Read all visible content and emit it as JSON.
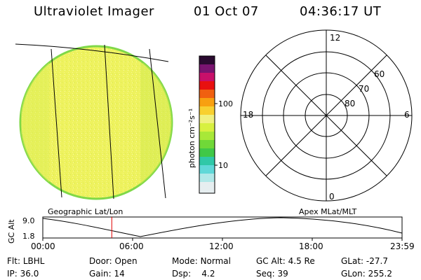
{
  "header": {
    "title": "Ultraviolet Imager",
    "date": "01 Oct 07",
    "time": "04:36:17 UT"
  },
  "colorbar": {
    "unit_label": "photon cm⁻²s⁻¹",
    "ticks": [
      "100",
      "10"
    ]
  },
  "polar": {
    "mlt_labels": {
      "top": "12",
      "left": "18",
      "right": "6",
      "bottom": "0"
    },
    "lat_labels": [
      "60",
      "70",
      "80"
    ]
  },
  "labels": {
    "geo": "Geographic Lat/Lon",
    "apex": "Apex MLat/MLT"
  },
  "altitude_strip": {
    "axis_label": "GC Alt",
    "ymax": "9.0",
    "ymin": "1.8",
    "time_ticks": [
      "00:00",
      "06:00",
      "12:00",
      "18:00",
      "23:59"
    ],
    "current_time_fraction": 0.192
  },
  "info": [
    [
      {
        "label": "Flt:",
        "value": "LBHL"
      },
      {
        "label": "Door:",
        "value": "Open"
      },
      {
        "label": "Mode:",
        "value": "Normal"
      },
      {
        "label": "GC Alt:",
        "value": "4.5 Re"
      },
      {
        "label": "GLat:",
        "value": "-27.7"
      }
    ],
    [
      {
        "label": "IP:",
        "value": "36.0"
      },
      {
        "label": "Gain:",
        "value": "14"
      },
      {
        "label": "Dsp:",
        "value": "4.2"
      },
      {
        "label": "Seq:",
        "value": "39"
      },
      {
        "label": "GLon:",
        "value": "255.2"
      }
    ]
  ],
  "colors": {
    "disk": "#e8f05a",
    "disk_edge": "#8ad84a",
    "marker": "#e00000"
  }
}
